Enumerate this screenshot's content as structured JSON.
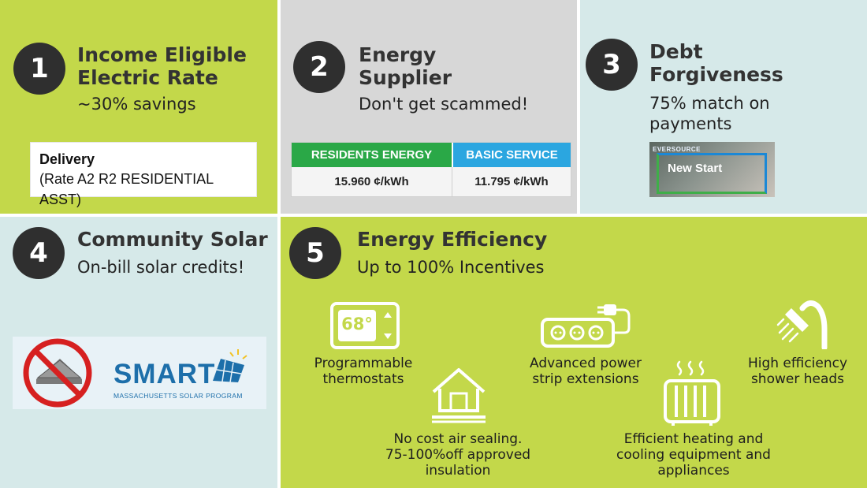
{
  "panel1": {
    "number": "1",
    "title": "Income Eligible Electric Rate",
    "title_line1": "Income Eligible",
    "title_line2": "Electric Rate",
    "subtitle": "~30% savings",
    "rate_card": {
      "heading": "Delivery",
      "detail": "(Rate A2 R2 RESIDENTIAL ASST)"
    }
  },
  "panel2": {
    "number": "2",
    "title_line1": "Energy",
    "title_line2": "Supplier",
    "subtitle": "Don't get scammed!",
    "comparison": {
      "headers": [
        "RESIDENTS ENERGY",
        "BASIC SERVICE"
      ],
      "values": [
        "15.960 ¢/kWh",
        "11.795 ¢/kWh"
      ],
      "header_colors": [
        "#2aa847",
        "#2ba6e0"
      ]
    }
  },
  "panel3": {
    "number": "3",
    "title_line1": "Debt",
    "title_line2": "Forgiveness",
    "subtitle_line1": "75% match on",
    "subtitle_line2": "payments",
    "program_image": {
      "brand": "EVERSOURCE",
      "label": "New Start"
    }
  },
  "panel4": {
    "number": "4",
    "title": "Community Solar",
    "subtitle": "On-bill solar credits!",
    "logo": {
      "name": "SMART",
      "tagline": "MASSACHUSETTS SOLAR PROGRAM"
    }
  },
  "panel5": {
    "number": "5",
    "title": "Energy Efficiency",
    "subtitle": "Up to 100% Incentives",
    "items": [
      {
        "icon": "thermostat-icon",
        "line1": "Programmable",
        "line2": "thermostats",
        "display": "68°"
      },
      {
        "icon": "power-strip-icon",
        "line1": "Advanced power",
        "line2": "strip extensions"
      },
      {
        "icon": "shower-head-icon",
        "line1": "High efficiency",
        "line2": "shower heads"
      },
      {
        "icon": "house-icon",
        "line1": "No cost air sealing.",
        "line2": "75-100%off approved",
        "line3": "insulation"
      },
      {
        "icon": "radiator-icon",
        "line1": "Efficient heating and",
        "line2": "cooling equipment and",
        "line3": "appliances"
      }
    ]
  },
  "colors": {
    "green": "#c3d84a",
    "grey": "#d7d7d7",
    "light_blue": "#d6e9e9",
    "badge": "#2f2f2f"
  }
}
